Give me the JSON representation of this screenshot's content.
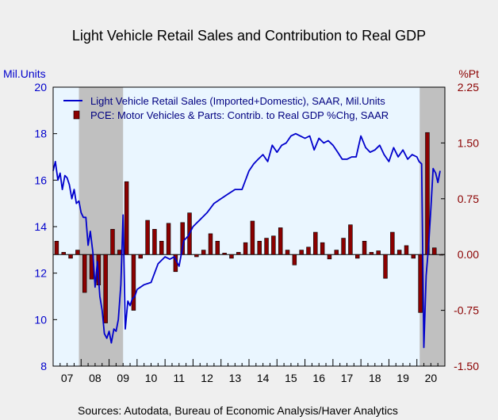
{
  "chart_data": {
    "type": "bar+line",
    "title": "Light Vehicle Retail Sales and Contribution to Real GDP",
    "left_axis": {
      "label": "Mil.Units",
      "ylim": [
        8,
        20
      ],
      "ticks": [
        "8",
        "10",
        "12",
        "14",
        "16",
        "18",
        "20"
      ],
      "color": "#0000cc"
    },
    "right_axis": {
      "label": "%Pt",
      "ylim": [
        -1.5,
        2.25
      ],
      "ticks": [
        "-1.50",
        "-0.75",
        "0.00",
        "0.75",
        "1.50",
        "2.25"
      ],
      "color": "#8b0000"
    },
    "x_ticks": [
      "07",
      "08",
      "09",
      "10",
      "11",
      "12",
      "13",
      "14",
      "15",
      "16",
      "17",
      "18",
      "19",
      "20"
    ],
    "x_range": [
      2007.0,
      2021.0
    ],
    "recession_shading": [
      [
        2007.92,
        2009.5
      ],
      [
        2020.1,
        2021.0
      ]
    ],
    "colors": {
      "line": "#0000cc",
      "bars": "#8b0000",
      "recession": "#c0c0c0",
      "plot_bg": "#eaf6ff"
    },
    "series": [
      {
        "name": "Light Vehicle Retail Sales (Imported+Domestic), SAAR, Mil.Units",
        "axis": "left",
        "type": "line",
        "x": [
          2007.0,
          2007.08,
          2007.17,
          2007.25,
          2007.33,
          2007.42,
          2007.5,
          2007.58,
          2007.67,
          2007.75,
          2007.83,
          2007.92,
          2008.0,
          2008.08,
          2008.17,
          2008.25,
          2008.33,
          2008.42,
          2008.5,
          2008.58,
          2008.67,
          2008.75,
          2008.83,
          2008.92,
          2009.0,
          2009.08,
          2009.17,
          2009.25,
          2009.33,
          2009.42,
          2009.5,
          2009.58,
          2009.67,
          2009.75,
          2009.83,
          2009.92,
          2010.0,
          2010.25,
          2010.5,
          2010.75,
          2011.0,
          2011.17,
          2011.33,
          2011.5,
          2011.67,
          2011.83,
          2012.0,
          2012.25,
          2012.5,
          2012.75,
          2013.0,
          2013.25,
          2013.5,
          2013.75,
          2014.0,
          2014.17,
          2014.33,
          2014.5,
          2014.67,
          2014.83,
          2015.0,
          2015.17,
          2015.33,
          2015.5,
          2015.67,
          2015.83,
          2016.0,
          2016.17,
          2016.33,
          2016.5,
          2016.67,
          2016.83,
          2017.0,
          2017.17,
          2017.33,
          2017.5,
          2017.67,
          2017.83,
          2018.0,
          2018.17,
          2018.33,
          2018.5,
          2018.67,
          2018.83,
          2019.0,
          2019.17,
          2019.33,
          2019.5,
          2019.67,
          2019.83,
          2020.0,
          2020.08,
          2020.17,
          2020.25,
          2020.33,
          2020.42,
          2020.5,
          2020.58,
          2020.67,
          2020.75,
          2020.83
        ],
        "values": [
          16.4,
          16.8,
          16.0,
          16.3,
          15.6,
          16.2,
          16.1,
          15.8,
          15.2,
          15.6,
          15.0,
          15.1,
          14.6,
          14.4,
          14.4,
          13.2,
          13.8,
          12.9,
          11.4,
          12.5,
          11.0,
          10.4,
          9.4,
          9.2,
          9.5,
          9.0,
          9.6,
          9.5,
          10.0,
          11.5,
          14.5,
          9.6,
          10.8,
          10.6,
          10.9,
          11.0,
          11.3,
          11.5,
          11.6,
          12.4,
          12.7,
          12.6,
          12.7,
          12.3,
          13.4,
          13.6,
          14.0,
          14.3,
          14.6,
          15.0,
          15.2,
          15.4,
          15.6,
          15.6,
          16.4,
          16.7,
          16.9,
          17.1,
          16.8,
          17.5,
          17.2,
          17.5,
          17.6,
          17.9,
          18.0,
          17.9,
          17.8,
          17.9,
          17.3,
          17.8,
          17.6,
          17.7,
          17.5,
          17.2,
          16.9,
          16.9,
          17.0,
          17.0,
          17.9,
          17.4,
          17.2,
          17.3,
          17.5,
          17.1,
          16.8,
          17.4,
          17.0,
          17.3,
          16.9,
          17.1,
          17.0,
          16.8,
          16.7,
          8.8,
          11.9,
          13.2,
          14.8,
          16.5,
          16.3,
          15.9,
          16.4
        ]
      },
      {
        "name": "PCE: Motor Vehicles & Parts: Contrib. to Real GDP %Chg, SAAR",
        "axis": "right",
        "type": "bar",
        "x": [
          2007.125,
          2007.375,
          2007.625,
          2007.875,
          2008.125,
          2008.375,
          2008.625,
          2008.875,
          2009.125,
          2009.375,
          2009.625,
          2009.875,
          2010.125,
          2010.375,
          2010.625,
          2010.875,
          2011.125,
          2011.375,
          2011.625,
          2011.875,
          2012.125,
          2012.375,
          2012.625,
          2012.875,
          2013.125,
          2013.375,
          2013.625,
          2013.875,
          2014.125,
          2014.375,
          2014.625,
          2014.875,
          2015.125,
          2015.375,
          2015.625,
          2015.875,
          2016.125,
          2016.375,
          2016.625,
          2016.875,
          2017.125,
          2017.375,
          2017.625,
          2017.875,
          2018.125,
          2018.375,
          2018.625,
          2018.875,
          2019.125,
          2019.375,
          2019.625,
          2019.875,
          2020.125,
          2020.375,
          2020.625,
          2020.875
        ],
        "values": [
          0.18,
          0.03,
          -0.05,
          0.06,
          -0.51,
          -0.33,
          -0.41,
          -0.92,
          0.34,
          0.06,
          0.98,
          -0.75,
          -0.05,
          0.46,
          0.34,
          0.18,
          0.42,
          -0.23,
          0.43,
          0.56,
          -0.03,
          0.06,
          0.28,
          0.18,
          0.02,
          -0.05,
          0.03,
          0.16,
          0.45,
          0.18,
          0.22,
          0.25,
          0.36,
          0.06,
          -0.14,
          0.06,
          0.1,
          0.3,
          0.16,
          -0.06,
          0.06,
          0.22,
          0.4,
          -0.05,
          0.18,
          0.03,
          0.05,
          -0.32,
          0.3,
          0.06,
          0.12,
          -0.05,
          -0.78,
          1.64,
          0.09,
          0.0
        ]
      }
    ],
    "legend": {
      "placement": "top-left",
      "items": [
        "Light Vehicle Retail Sales (Imported+Domestic), SAAR, Mil.Units",
        "PCE: Motor Vehicles & Parts: Contrib. to Real GDP %Chg, SAAR"
      ]
    },
    "grid": false
  },
  "footer": {
    "sources": "Sources:  Autodata, Bureau of Economic Analysis/Haver Analytics"
  }
}
